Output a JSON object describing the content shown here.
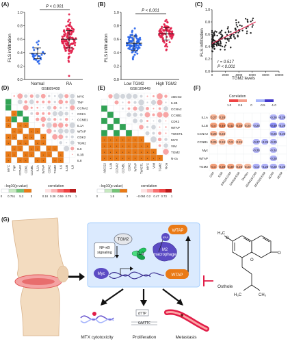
{
  "panel_labels": {
    "A": "(A)",
    "B": "(B)",
    "C": "(C)",
    "D": "(D)",
    "E": "(E)",
    "F": "(F)",
    "G": "(G)"
  },
  "chart_data": [
    {
      "id": "A",
      "type": "scatter",
      "title": "",
      "xlabel": "",
      "ylabel": "FLS infiltration",
      "ylim": [
        0,
        1.0
      ],
      "yticks": [
        "0.0",
        "0.2",
        "0.4",
        "0.6",
        "0.8",
        "1.0"
      ],
      "categories": [
        "Normal",
        "RA"
      ],
      "series": [
        {
          "name": "Normal",
          "color": "#2563eb",
          "mean": 0.39,
          "sd": 0.08,
          "n": 30
        },
        {
          "name": "RA",
          "color": "#e11d48",
          "mean": 0.6,
          "sd": 0.13,
          "n": 120
        }
      ],
      "annotation": "P < 0.001"
    },
    {
      "id": "B",
      "type": "scatter",
      "title": "",
      "xlabel": "",
      "ylabel": "FLS infiltration",
      "ylim": [
        0,
        1.0
      ],
      "yticks": [
        "0.0",
        "0.2",
        "0.4",
        "0.6",
        "0.8",
        "1.0"
      ],
      "categories": [
        "Low TGM2",
        "High TGM2"
      ],
      "series": [
        {
          "name": "Low TGM2",
          "color": "#2563eb",
          "mean": 0.54,
          "sd": 0.11,
          "n": 80
        },
        {
          "name": "High TGM2",
          "color": "#e11d48",
          "mean": 0.68,
          "sd": 0.09,
          "n": 80
        }
      ],
      "annotation": "P < 0.001"
    },
    {
      "id": "C",
      "type": "scatter",
      "title": "",
      "xlabel": "TGM2 levels",
      "ylabel": "FLS infiltration",
      "xlim": [
        0,
        10000
      ],
      "ylim": [
        0,
        1.0
      ],
      "xticks": [
        "0",
        "2000",
        "4000",
        "6000",
        "8000",
        "10000"
      ],
      "yticks": [
        "0.0",
        "0.2",
        "0.4",
        "0.6",
        "0.8",
        "1.0"
      ],
      "fit": {
        "x": [
          0,
          6500
        ],
        "y": [
          0.45,
          0.8
        ],
        "color": "#e11d48"
      },
      "stats": [
        "r = 0.517",
        "P < 0.001"
      ]
    },
    {
      "id": "D",
      "type": "heatmap",
      "title": "GSE89408",
      "genes": [
        "MYC",
        "TNF",
        "CCNA2",
        "CDK1",
        "CCNB1",
        "IL1A",
        "WTAP",
        "CDK2",
        "TGM2",
        "IL6",
        "IL1B",
        "IL8"
      ],
      "legend_left_title": "−log10(p value)",
      "legend_left_ticks": [
        "0",
        "0.751",
        "5.2",
        "3"
      ],
      "legend_right_title": "correlation",
      "legend_right_ticks": [
        "0.18",
        "0.38",
        "0.59",
        "0.79",
        "1"
      ]
    },
    {
      "id": "E",
      "type": "heatmap",
      "title": "GSE109449",
      "genes": [
        "ABCG2",
        "IL1B",
        "CCNA2",
        "CCNB1",
        "CDK2",
        "WTAP",
        "TWIST1",
        "MYC",
        "VIM",
        "TGM2",
        "N-ca"
      ],
      "legend_left_title": "−log10(p value)",
      "legend_left_ticks": [
        "0",
        "1.5",
        "3"
      ],
      "legend_right_title": "correlation",
      "legend_right_ticks": [
        "−0.064",
        "0.2",
        "0.47",
        "0.73",
        "1"
      ]
    },
    {
      "id": "F",
      "type": "heatmap",
      "legend_title": "Correlation",
      "legend_ticks": [
        "1.0",
        "0.5",
        "0",
        "-0.5",
        "-1.0"
      ],
      "rows": [
        "IL1A",
        "IL1B",
        "CCNA2",
        "CCNB1",
        "Myc",
        "WTAP",
        "TGM2"
      ],
      "cols": [
        "CRP",
        "ESR",
        "DAS28-CRP",
        "DAS28-ESR",
        "Swollen",
        "ΔDAS28-CRP",
        "ΔDAS28-ESR",
        "ΔCRP",
        "ΔESR"
      ],
      "values": [
        [
          0.27,
          0.28,
          null,
          null,
          null,
          null,
          null,
          -0.26,
          -0.29
        ],
        [
          0.4,
          0.49,
          0.42,
          0.38,
          0.24,
          -0.25,
          null,
          -0.49,
          -0.29
        ],
        [
          0.28,
          0.23,
          null,
          null,
          null,
          null,
          null,
          -0.26,
          -0.26
        ],
        [
          0.25,
          0.24,
          0.3,
          0.24,
          null,
          -0.27,
          -0.26,
          -0.25,
          null
        ],
        [
          null,
          null,
          null,
          null,
          null,
          -0.25,
          null,
          -0.24,
          null
        ],
        [
          null,
          null,
          null,
          null,
          null,
          null,
          null,
          -0.28,
          null
        ],
        [
          0.4,
          0.39,
          0.39,
          0.26,
          0.24,
          -0.3,
          -0.28,
          -0.28,
          -0.26
        ]
      ]
    }
  ],
  "diagram": {
    "tgm2": "TGM2",
    "nfkb": "NF-κB signaling",
    "fls": "FLS",
    "m2": "M2 macrophage",
    "wtap_top": "WTAP",
    "m6a": "m⁶A",
    "myc": "Myc",
    "wtap_bottom": "WTAP",
    "osthole": "Osthole",
    "chem_h3co": "H₃C",
    "chem_o1": "O",
    "chem_o2": "O",
    "chem_o3": "O",
    "chem_h3c": "H₃C",
    "chem_ch3": "CH₃",
    "outcome1": "MTX cytotoxicity",
    "outcome2": "Proliferation",
    "outcome3": "Metastasis",
    "dttp": "dTTP",
    "seq": "GAATTC"
  },
  "colors": {
    "blue": "#2563eb",
    "red": "#e11d48",
    "orange": "#ea7a16",
    "green": "#4f9a3a",
    "cell": "#dbeafe",
    "purple": "#6d5bd0"
  }
}
